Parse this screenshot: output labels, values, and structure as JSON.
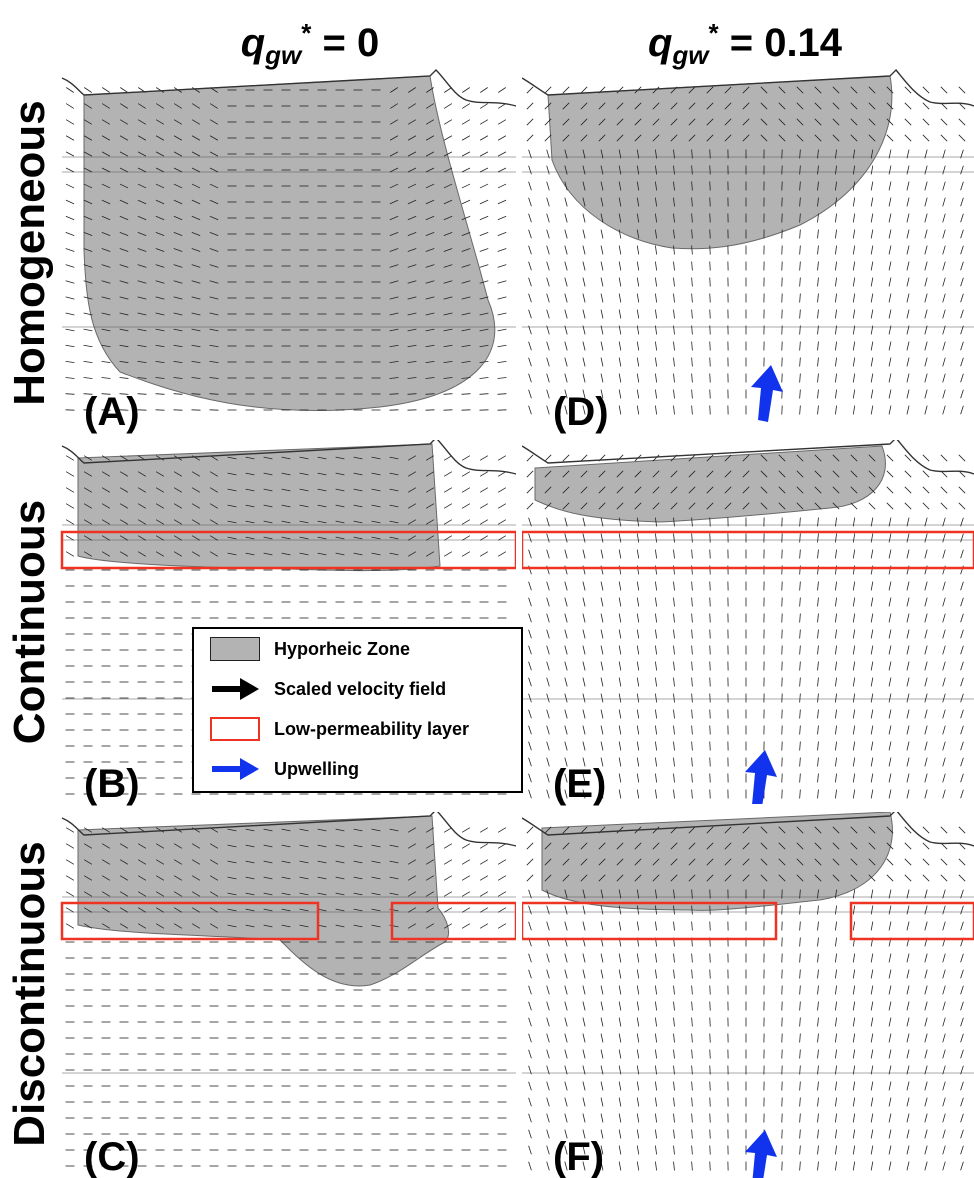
{
  "columns": [
    {
      "q": "q",
      "sub": "gw",
      "sup": "*",
      "value": " = 0"
    },
    {
      "q": "q",
      "sub": "gw",
      "sup": "*",
      "value": " = 0.14"
    }
  ],
  "rows": [
    "Homogeneous",
    "Continuous",
    "Discontinuous"
  ],
  "panels": [
    {
      "label": "(A)",
      "case": "Homogeneous",
      "qgw": "0",
      "upwelling": false
    },
    {
      "label": "(B)",
      "case": "Continuous",
      "qgw": "0",
      "upwelling": false
    },
    {
      "label": "(C)",
      "case": "Discontinuous",
      "qgw": "0",
      "upwelling": false
    },
    {
      "label": "(D)",
      "case": "Homogeneous",
      "qgw": "0.14",
      "upwelling": true
    },
    {
      "label": "(E)",
      "case": "Continuous",
      "qgw": "0.14",
      "upwelling": true
    },
    {
      "label": "(F)",
      "case": "Discontinuous",
      "qgw": "0.14",
      "upwelling": true
    }
  ],
  "legend": [
    {
      "label": "Hyporheic Zone",
      "symbol": "gray-box-icon"
    },
    {
      "label": "Scaled velocity field",
      "symbol": "black-arrow-icon"
    },
    {
      "label": "Low-permeability layer",
      "symbol": "red-outline-box-icon"
    },
    {
      "label": "Upwelling",
      "symbol": "blue-arrow-icon"
    }
  ],
  "colors": {
    "hyporheic_zone": "#b3b3b3",
    "hyporheic_edge": "#6a6a6a",
    "velocity_arrows": "#222222",
    "low_permeability_layer": "#ee3322",
    "upwelling_arrow": "#1133ee",
    "grid_lines": "#555555"
  }
}
